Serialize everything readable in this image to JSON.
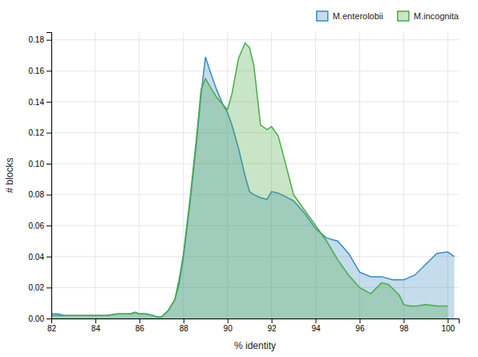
{
  "chart_data": {
    "type": "area",
    "xlabel": "% identity",
    "ylabel": "# blocks",
    "xlim": [
      82,
      100.5
    ],
    "ylim": [
      0,
      0.185
    ],
    "xticks": [
      82,
      84,
      86,
      88,
      90,
      92,
      94,
      96,
      98,
      100
    ],
    "yticks": [
      {
        "value": 0.0,
        "label": "0.00"
      },
      {
        "value": 0.02,
        "label": "0.02"
      },
      {
        "value": 0.04,
        "label": "0.04"
      },
      {
        "value": 0.06,
        "label": "0.06"
      },
      {
        "value": 0.08,
        "label": "0.08"
      },
      {
        "value": 0.1,
        "label": "0.10"
      },
      {
        "value": 0.12,
        "label": "0.12"
      },
      {
        "value": 0.14,
        "label": "0.14"
      },
      {
        "value": 0.16,
        "label": "0.16"
      },
      {
        "value": 0.18,
        "label": "0.18"
      }
    ],
    "grid": true,
    "legend": "top-right",
    "series": [
      {
        "name": "M.enterolobii",
        "color": "#3a8abf",
        "x": [
          82.0,
          82.3,
          82.6,
          83.0,
          83.5,
          84.0,
          84.5,
          85.0,
          85.3,
          85.6,
          85.8,
          86.0,
          86.3,
          86.6,
          86.8,
          87.0,
          87.3,
          87.6,
          87.8,
          88.0,
          88.3,
          88.6,
          88.8,
          89.0,
          89.2,
          89.5,
          89.8,
          90.0,
          90.2,
          90.5,
          90.8,
          91.0,
          91.2,
          91.5,
          91.8,
          92.0,
          92.3,
          92.6,
          93.0,
          93.5,
          94.0,
          94.5,
          95.0,
          95.5,
          96.0,
          96.5,
          97.0,
          97.5,
          98.0,
          98.5,
          99.0,
          99.5,
          100.0,
          100.3
        ],
        "values": [
          0.003,
          0.003,
          0.002,
          0.002,
          0.002,
          0.002,
          0.002,
          0.003,
          0.003,
          0.003,
          0.004,
          0.003,
          0.003,
          0.002,
          0.001,
          0.001,
          0.005,
          0.012,
          0.022,
          0.04,
          0.075,
          0.115,
          0.145,
          0.169,
          0.16,
          0.148,
          0.138,
          0.133,
          0.125,
          0.11,
          0.092,
          0.082,
          0.08,
          0.078,
          0.077,
          0.082,
          0.081,
          0.079,
          0.076,
          0.068,
          0.058,
          0.052,
          0.05,
          0.042,
          0.03,
          0.027,
          0.027,
          0.025,
          0.025,
          0.028,
          0.035,
          0.042,
          0.043,
          0.04
        ]
      },
      {
        "name": "M.incognita",
        "color": "#4aaa4a",
        "x": [
          82.0,
          82.3,
          82.6,
          83.0,
          83.5,
          84.0,
          84.5,
          85.0,
          85.3,
          85.6,
          85.8,
          86.0,
          86.3,
          86.6,
          86.8,
          87.0,
          87.3,
          87.6,
          87.8,
          88.0,
          88.3,
          88.6,
          88.8,
          89.0,
          89.2,
          89.5,
          89.8,
          90.0,
          90.2,
          90.5,
          90.8,
          91.0,
          91.2,
          91.5,
          91.8,
          92.0,
          92.3,
          92.6,
          93.0,
          93.5,
          94.0,
          94.5,
          95.0,
          95.5,
          96.0,
          96.5,
          97.0,
          97.3,
          97.6,
          97.8,
          98.0,
          98.3,
          98.6,
          99.0,
          99.5,
          100.0
        ],
        "values": [
          0.002,
          0.002,
          0.002,
          0.002,
          0.002,
          0.002,
          0.002,
          0.003,
          0.003,
          0.003,
          0.004,
          0.003,
          0.003,
          0.002,
          0.001,
          0.001,
          0.005,
          0.012,
          0.025,
          0.042,
          0.078,
          0.118,
          0.148,
          0.155,
          0.15,
          0.143,
          0.138,
          0.135,
          0.145,
          0.168,
          0.178,
          0.175,
          0.163,
          0.125,
          0.122,
          0.124,
          0.118,
          0.102,
          0.08,
          0.07,
          0.06,
          0.05,
          0.038,
          0.028,
          0.02,
          0.016,
          0.023,
          0.022,
          0.018,
          0.015,
          0.009,
          0.008,
          0.008,
          0.009,
          0.008,
          0.008
        ]
      }
    ]
  }
}
